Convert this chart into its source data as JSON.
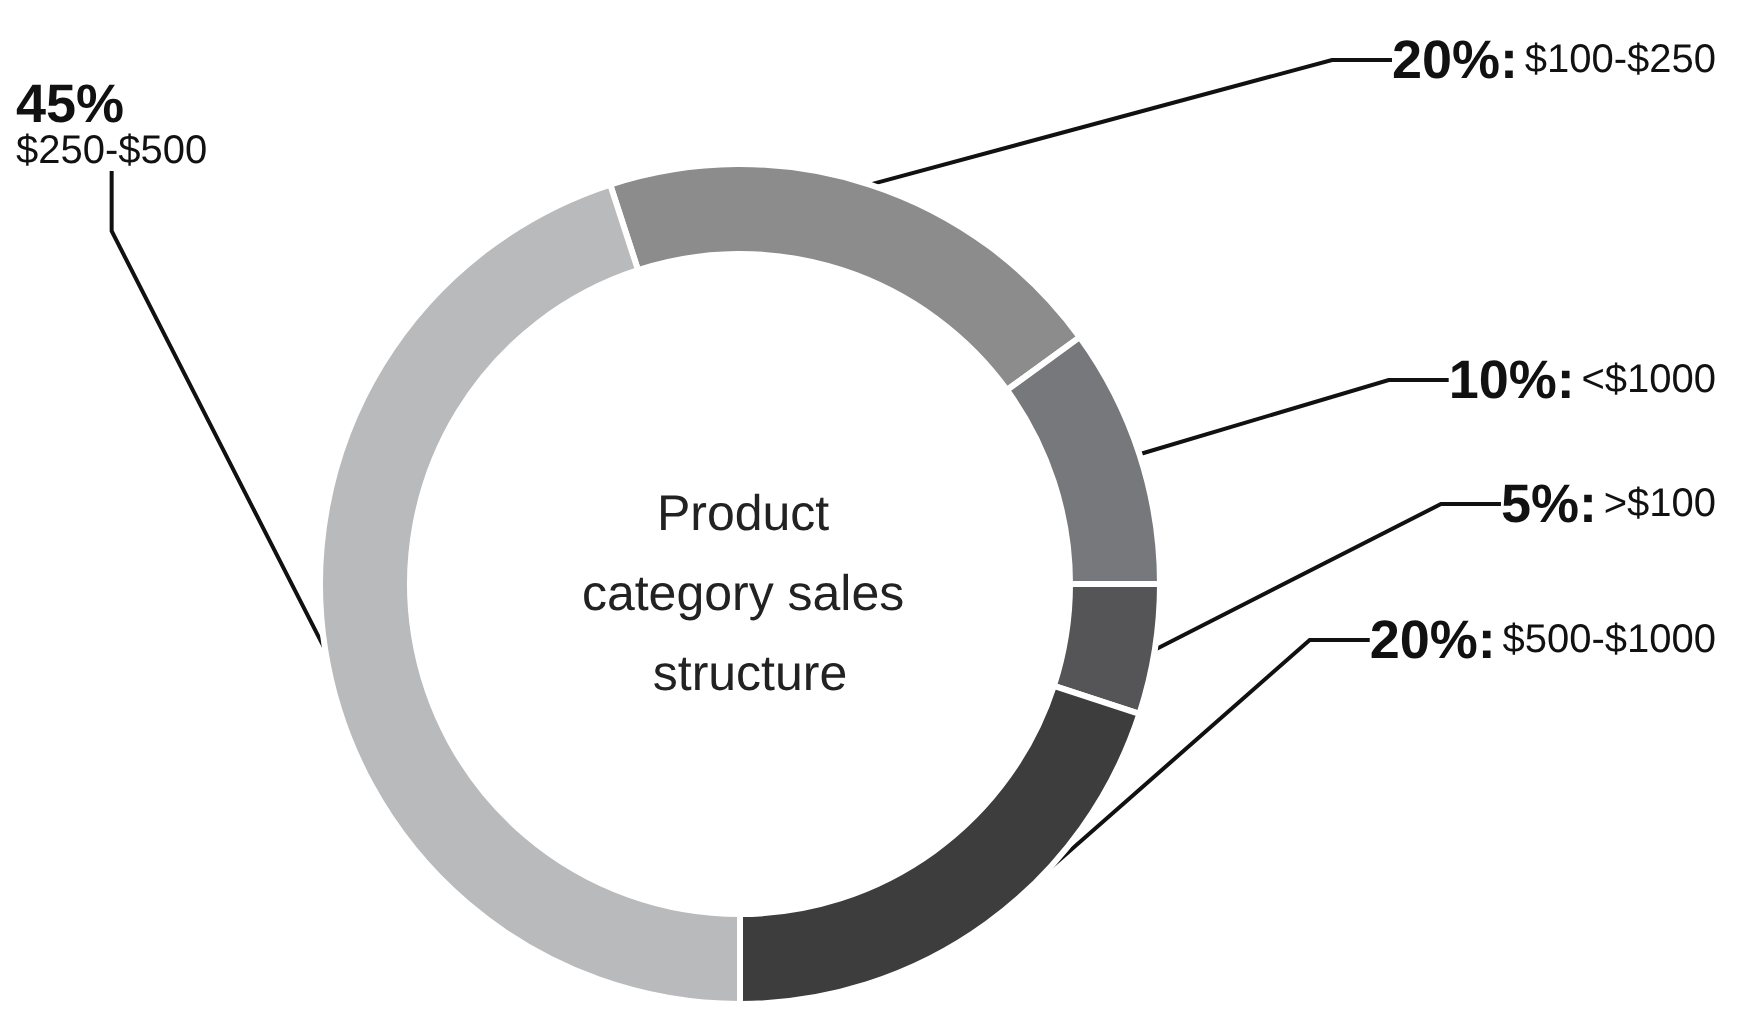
{
  "chart_data": {
    "type": "donut",
    "title": "Product category sales structure",
    "categories": [
      "$100-$250",
      "<$1000",
      ">$100",
      "$500-$1000",
      "$250-$500"
    ],
    "values": [
      20,
      10,
      5,
      20,
      45
    ],
    "colors": [
      "#8c8c8d",
      "#77787b",
      "#555557",
      "#3d3d3d",
      "#b9babc"
    ],
    "value_labels": [
      "20%:",
      "10%:",
      "5%:",
      "20%:",
      "45%"
    ],
    "legend": false
  }
}
